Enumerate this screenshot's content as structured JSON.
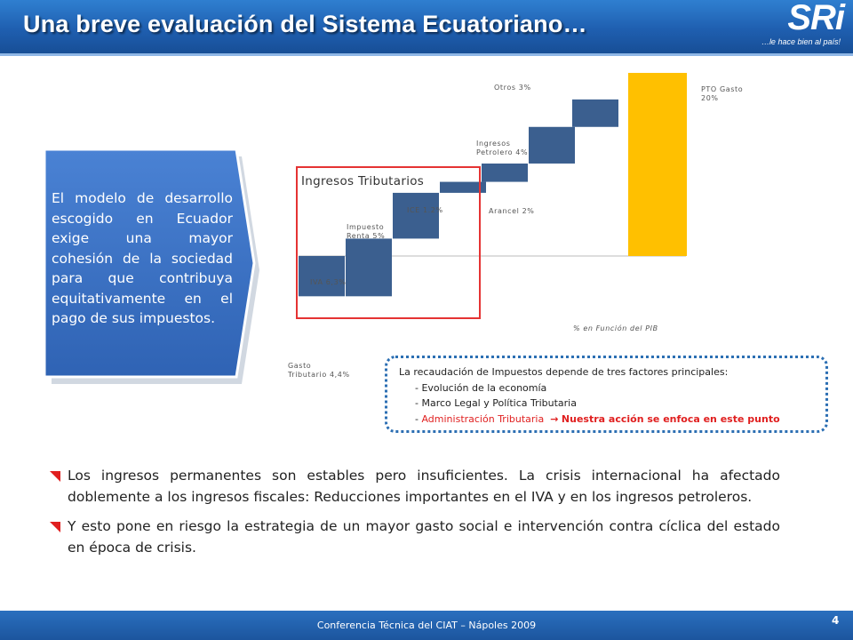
{
  "slide": {
    "title": "Una breve evaluación del Sistema Ecuatoriano…",
    "logo_text": "SRi",
    "logo_tagline": "…le hace bien al país!",
    "arrow_text": "El modelo de desarrollo escogido en Ecuador exige una mayor cohesión de la sociedad para que contribuya equitativamente en el pago de sus impuestos.",
    "ingresos_label": "Ingresos Tributarios",
    "axis_caption": "% en Función del PIB",
    "factors": {
      "intro": "La recaudación de Impuestos depende de tres factores principales:",
      "item1": "- Evolución de la economía",
      "item2": "- Marco Legal y Política Tributaria",
      "item3_prefix": "- ",
      "item3_red": "Administración Tributaria",
      "item3_arrow": "→",
      "item3_bold": "Nuestra acción se enfoca en este punto"
    },
    "bullets": [
      "Los ingresos permanentes son estables pero insuficientes. La crisis internacional ha afectado doblemente a los ingresos fiscales: Reducciones importantes en el IVA y en los ingresos petroleros.",
      "Y esto pone en riesgo la estrategia de un mayor gasto social e intervención contra cíclica del estado en época de crisis."
    ],
    "footer": "Conferencia Técnica del CIAT – Nápoles 2009",
    "page_number": "4"
  },
  "colors": {
    "header": "#1f5fb0",
    "bar_blue": "#3b5f8f",
    "bar_total": "#ffc000",
    "highlight_red": "#e53333",
    "arrow_box": "#3d74c8"
  },
  "chart_data": {
    "type": "waterfall",
    "unit": "% del PIB",
    "steps": [
      {
        "label_lines": [
          "Gasto",
          "Tributario 4,4%"
        ],
        "value": -4.4
      },
      {
        "label_lines": [
          "IVA 6,3%"
        ],
        "value": 6.3
      },
      {
        "label_lines": [
          "Impuesto",
          "Renta 5%"
        ],
        "value": 5
      },
      {
        "label_lines": [
          "ICE 1.2%"
        ],
        "value": 1.2
      },
      {
        "label_lines": [
          "Arancel 2%"
        ],
        "value": 2
      },
      {
        "label_lines": [
          "Ingresos",
          "Petrolero 4%"
        ],
        "value": 4
      },
      {
        "label_lines": [
          "Otros 3%"
        ],
        "value": 3
      }
    ],
    "total": {
      "label_lines": [
        "PTO Gasto",
        "20%"
      ],
      "value": 20
    },
    "xlabel": "% en Función del PIB"
  }
}
